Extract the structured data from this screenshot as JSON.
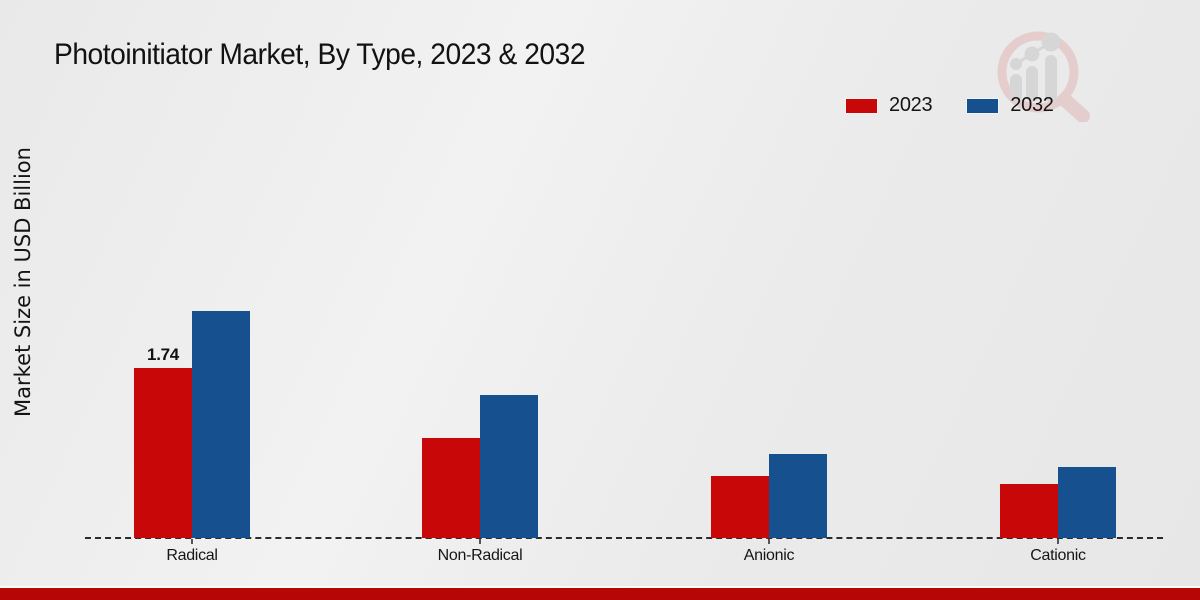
{
  "title": "Photoinitiator Market, By Type, 2023 & 2032",
  "ylabel": "Market Size in USD Billion",
  "footer": {
    "accent_color": "#b70606"
  },
  "watermark_icon": "magnifier-bar-chart-logo",
  "chart_data": {
    "type": "bar",
    "categories": [
      "Radical",
      "Non-Radical",
      "Anionic",
      "Cationic"
    ],
    "series": [
      {
        "name": "2023",
        "color": "#c80808",
        "values": [
          1.74,
          1.02,
          0.63,
          0.55
        ]
      },
      {
        "name": "2032",
        "color": "#17508f",
        "values": [
          2.32,
          1.46,
          0.86,
          0.73
        ]
      }
    ],
    "data_labels": [
      {
        "series_index": 0,
        "category_index": 0,
        "text": "1.74"
      }
    ],
    "title": "Photoinitiator Market, By Type, 2023 & 2032",
    "xlabel": "",
    "ylabel": "Market Size in USD Billion",
    "ylim": [
      0,
      2.5
    ],
    "grid": false,
    "legend_position": "top-right",
    "baseline_style": "dashed",
    "y_axis_ticks_visible": false
  }
}
